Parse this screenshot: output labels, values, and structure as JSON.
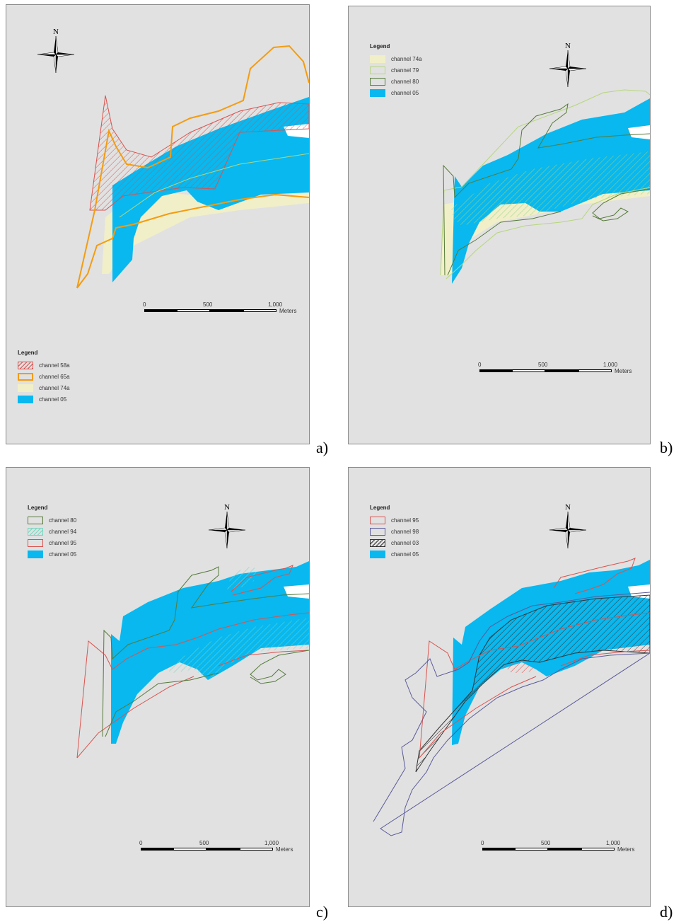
{
  "panels": [
    {
      "id": "a",
      "label": "a)",
      "legend": {
        "title": "Legend",
        "items": [
          {
            "label": "channel 58a",
            "style": "hatch",
            "color": "#d9534f"
          },
          {
            "label": "channel 65a",
            "style": "outline",
            "color": "#f39c12"
          },
          {
            "label": "channel 74a",
            "style": "fill",
            "color": "#f1efc8"
          },
          {
            "label": "channel 05",
            "style": "fill",
            "color": "#08b8ef"
          }
        ]
      },
      "north": "N",
      "scale": {
        "ticks": [
          "0",
          "500",
          "1,000"
        ],
        "unit": "Meters"
      }
    },
    {
      "id": "b",
      "label": "b)",
      "legend": {
        "title": "Legend",
        "items": [
          {
            "label": "channel 74a",
            "style": "fill",
            "color": "#f1efc8"
          },
          {
            "label": "channel 79",
            "style": "outline",
            "color": "#b6d67c"
          },
          {
            "label": "channel 80",
            "style": "outline",
            "color": "#557a3a"
          },
          {
            "label": "channel 05",
            "style": "fill",
            "color": "#08b8ef"
          }
        ]
      },
      "north": "N",
      "scale": {
        "ticks": [
          "0",
          "500",
          "1,000"
        ],
        "unit": "Meters"
      }
    },
    {
      "id": "c",
      "label": "c)",
      "legend": {
        "title": "Legend",
        "items": [
          {
            "label": "channel 80",
            "style": "outline",
            "color": "#557a3a"
          },
          {
            "label": "channel 94",
            "style": "hatch",
            "color": "#7ad6c0"
          },
          {
            "label": "channel 95",
            "style": "outline",
            "color": "#d9534f"
          },
          {
            "label": "channel 05",
            "style": "fill",
            "color": "#08b8ef"
          }
        ]
      },
      "north": "N",
      "scale": {
        "ticks": [
          "0",
          "500",
          "1,000"
        ],
        "unit": "Meters"
      }
    },
    {
      "id": "d",
      "label": "d)",
      "legend": {
        "title": "Legend",
        "items": [
          {
            "label": "channel 95",
            "style": "outline",
            "color": "#d9534f"
          },
          {
            "label": "channel 98",
            "style": "outline",
            "color": "#5a5a9a"
          },
          {
            "label": "channel 03",
            "style": "hatch",
            "color": "#333333"
          },
          {
            "label": "channel 05",
            "style": "fill",
            "color": "#08b8ef"
          }
        ]
      },
      "north": "N",
      "scale": {
        "ticks": [
          "0",
          "500",
          "1,000"
        ],
        "unit": "Meters"
      }
    }
  ]
}
